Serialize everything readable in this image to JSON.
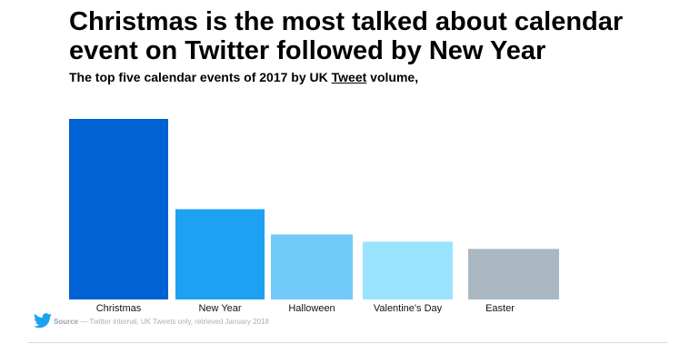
{
  "title": "Christmas is the most talked about calendar event on Twitter followed by New Year",
  "subtitle_prefix": "The top five calendar events of 2017 by UK ",
  "subtitle_link": "Tweet",
  "subtitle_suffix": " volume,",
  "source_label": "Source",
  "source_text": " — Twitter internal, UK Tweets only, retrieved January 2018",
  "logo_icon": "twitter-bird-icon",
  "chart_data": {
    "type": "bar",
    "title": "Christmas is the most talked about calendar event on Twitter followed by New Year",
    "subtitle": "The top five calendar events of 2017 by UK Tweet volume,",
    "categories": [
      "Christmas",
      "New Year",
      "Halloween",
      "Valentine's Day",
      "Easter"
    ],
    "values": [
      100,
      50,
      36,
      32,
      28
    ],
    "value_note": "relative Tweet volume (no axis printed)",
    "colors": [
      "#0062d4",
      "#1da1f2",
      "#71c9f8",
      "#9ae3ff",
      "#aab8c2"
    ],
    "grid": false,
    "axes_visible": false
  }
}
